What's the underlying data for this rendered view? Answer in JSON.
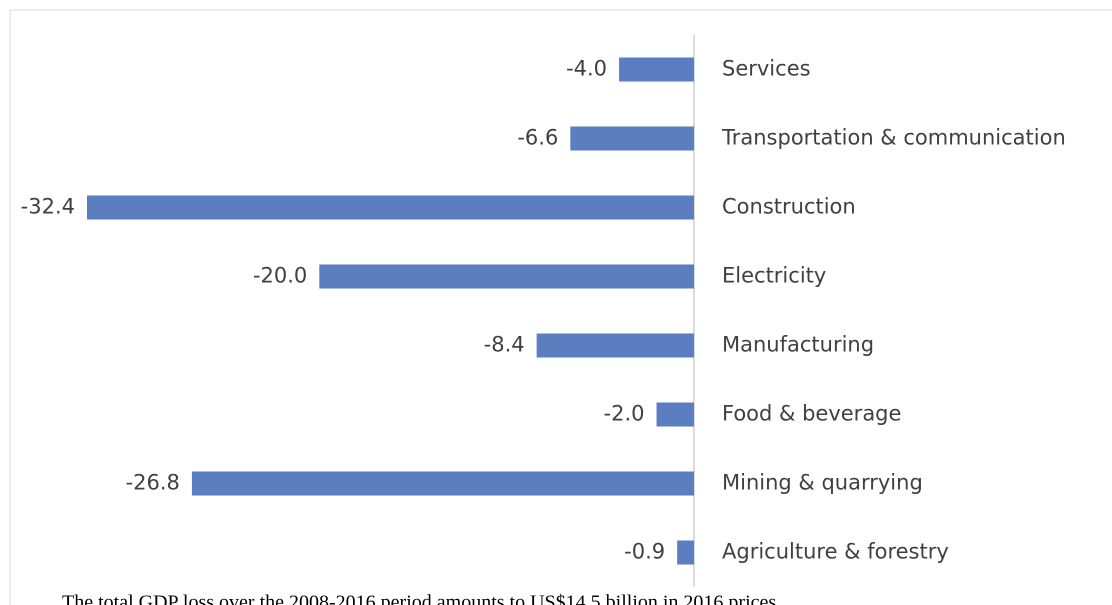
{
  "chart_data": {
    "type": "bar",
    "orientation": "horizontal",
    "categories": [
      "Services",
      "Transportation & communication",
      "Construction",
      "Electricity",
      "Manufacturing",
      "Food & beverage",
      "Mining & quarrying",
      "Agriculture & forestry"
    ],
    "values": [
      -4.0,
      -6.6,
      -32.4,
      -20.0,
      -8.4,
      -2.0,
      -26.8,
      -0.9
    ],
    "value_labels": [
      "-4.0",
      "-6.6",
      "-32.4",
      "-20.0",
      "-8.4",
      "-2.0",
      "-26.8",
      "-0.9"
    ],
    "color": "#5a7ebf",
    "caption": "The total GDP loss over the 2008-2016 period amounts to US$14.5 billion in 2016 prices"
  }
}
